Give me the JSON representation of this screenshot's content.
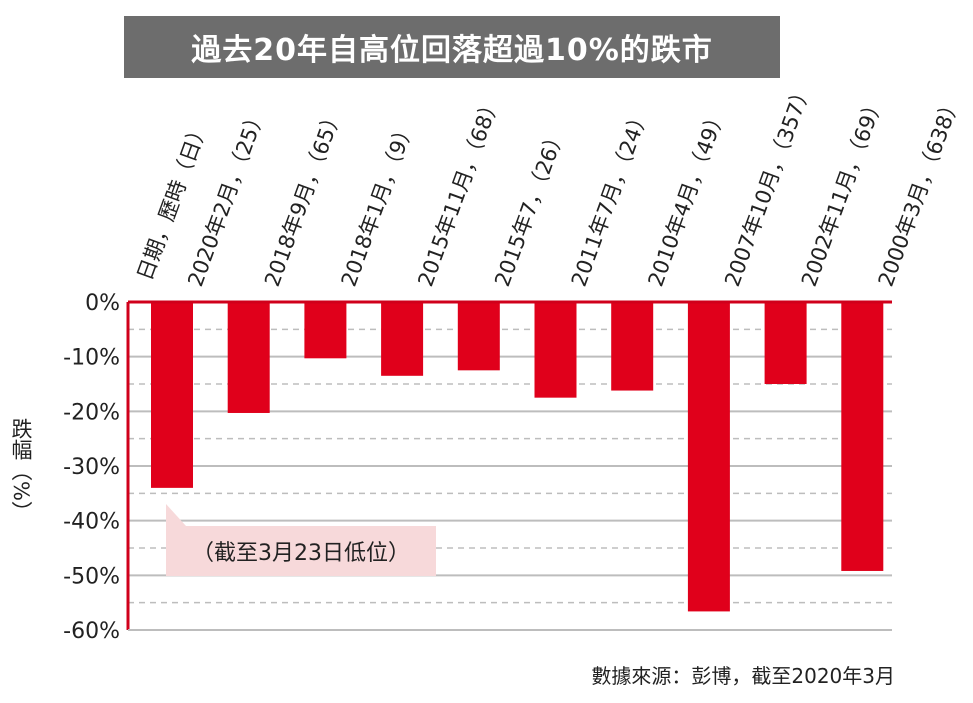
{
  "title": "過去20年自高位回落超過10%的跌市",
  "header_label": "日期，歷時（日）",
  "ylabel": "跌幅（%）",
  "source": "數據來源：彭博，截至2020年3月",
  "callout": "（截至3月23日低位）",
  "colors": {
    "bar": "#e0001b",
    "axis": "#d0001b",
    "title_bg": "#6d6d6d",
    "callout_bg": "#f7d9da",
    "grid": "#bdbdbd"
  },
  "chart_data": {
    "type": "bar",
    "categories": [
      "2020年2月，（25）",
      "2018年9月，（65）",
      "2018年1月，（9）",
      "2015年11月，（68）",
      "2015年7，（26）",
      "2011年7月，（24）",
      "2010年4月，（49）",
      "2007年10月，（357）",
      "2002年11月，（69）",
      "2000年3月，（638）"
    ],
    "values": [
      -34,
      -20.3,
      -10.3,
      -13.5,
      -12.5,
      -17.5,
      -16.2,
      -56.6,
      -15,
      -49.2
    ],
    "ylim": [
      -60,
      0
    ],
    "yticks": [
      0,
      -10,
      -20,
      -30,
      -40,
      -50,
      -60
    ],
    "ytick_labels": [
      "0%",
      "-10%",
      "-20%",
      "-30%",
      "-40%",
      "-50%",
      "-60%"
    ],
    "grid": true
  }
}
